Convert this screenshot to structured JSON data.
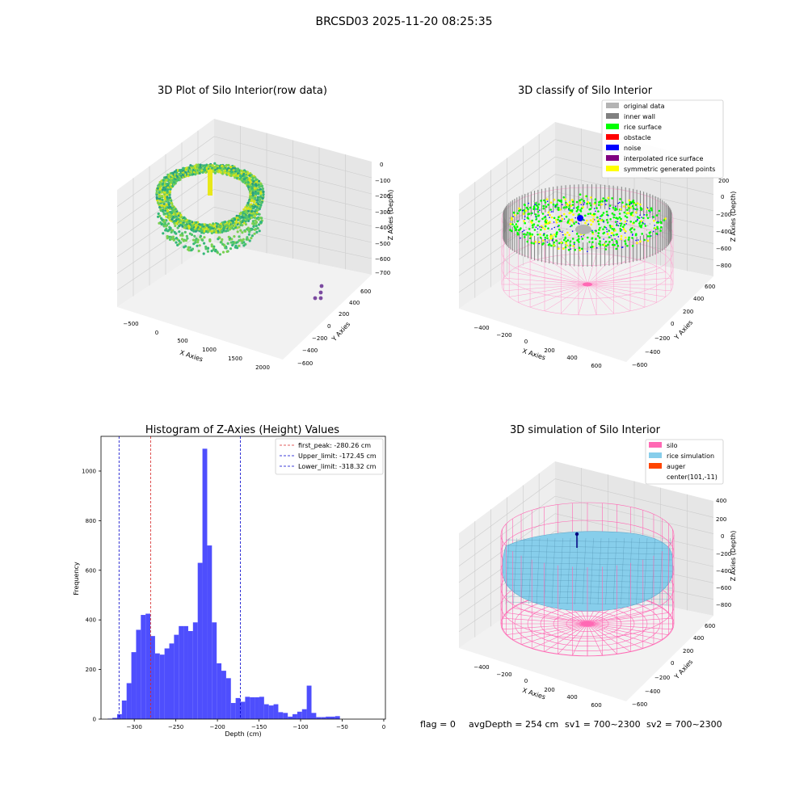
{
  "figure": {
    "suptitle": "BRCSD03 2025-11-20 08:25:35",
    "footer": {
      "flag": "flag = 0",
      "avg_depth": "avgDepth = 254 cm",
      "sv1": "sv1 = 700~2300",
      "sv2": "sv2 = 700~2300"
    }
  },
  "colors": {
    "hist_bar": "#4e4efd",
    "first_peak_line": "#d62728",
    "limit_line": "#0000cc",
    "original_data": "#b3b3b3",
    "inner_wall": "#808080",
    "rice_surface": "#00ff00",
    "obstacle": "#ff0000",
    "noise": "#0000ff",
    "interpolated_rice_surface": "#800080",
    "symmetric_generated_points": "#ffff00",
    "silo": "#ff69b4",
    "rice_simulation": "#87ceeb",
    "auger": "#ff4500"
  },
  "chart_data": [
    {
      "type": "scatter",
      "projection": "3d",
      "title": "3D Plot of Silo Interior(row data)",
      "xlabel": "X Axies",
      "ylabel": "Y Axies",
      "zlabel": "Z Axies (Depth)",
      "xticks": [
        "−500",
        "0",
        "500",
        "1000",
        "1500",
        "2000"
      ],
      "yticks": [
        "−600",
        "−400",
        "−200",
        "0",
        "200",
        "400",
        "600"
      ],
      "zticks": [
        "0",
        "−100",
        "−200",
        "−300",
        "−400",
        "−500",
        "−600",
        "−700"
      ],
      "xlim": [
        -600,
        2100
      ],
      "ylim": [
        -650,
        650
      ],
      "zlim": [
        -720,
        20
      ],
      "colormap": "viridis",
      "description_points": "ring-shaped rice point cloud near x≈0, plus a few outlier points near x≈2000"
    },
    {
      "type": "scatter",
      "projection": "3d",
      "title": "3D classify of Silo Interior",
      "xlabel": "X Axies",
      "ylabel": "Y Axies",
      "zlabel": "Z Axies (Depth)",
      "xticks": [
        "−400",
        "−200",
        "0",
        "200",
        "400",
        "600"
      ],
      "yticks": [
        "−600",
        "−400",
        "−200",
        "0",
        "200",
        "400",
        "600"
      ],
      "zticks": [
        "200",
        "0",
        "−200",
        "−400",
        "−600",
        "−800"
      ],
      "legend_position": "top-right",
      "legend": [
        {
          "label": "original data",
          "color_key": "original_data"
        },
        {
          "label": "inner wall",
          "color_key": "inner_wall"
        },
        {
          "label": "rice surface",
          "color_key": "rice_surface"
        },
        {
          "label": "obstacle",
          "color_key": "obstacle"
        },
        {
          "label": "noise",
          "color_key": "noise"
        },
        {
          "label": "interpolated rice surface",
          "color_key": "interpolated_rice_surface"
        },
        {
          "label": "symmetric generated points",
          "color_key": "symmetric_generated_points"
        }
      ]
    },
    {
      "type": "bar",
      "title": "Histogram of Z-Axies (Height) Values",
      "xlabel": "Depth (cm)",
      "ylabel": "Frequency",
      "xlim": [
        -340,
        2
      ],
      "ylim": [
        0,
        1140
      ],
      "xticks": [
        -300,
        -250,
        -200,
        -150,
        -100,
        -50,
        0
      ],
      "xtick_labels": [
        "−300",
        "−250",
        "−200",
        "−150",
        "−100",
        "−50",
        "0"
      ],
      "yticks": [
        0,
        200,
        400,
        600,
        800,
        1000
      ],
      "yticks_labels": [
        "0",
        "200",
        "400",
        "600",
        "800",
        "1000"
      ],
      "bin_start": -332,
      "bin_width": 5.7,
      "values": [
        2,
        5,
        20,
        75,
        145,
        270,
        360,
        420,
        425,
        335,
        265,
        260,
        285,
        305,
        340,
        375,
        375,
        355,
        390,
        630,
        1090,
        700,
        390,
        225,
        195,
        165,
        65,
        85,
        70,
        90,
        88,
        88,
        90,
        60,
        55,
        60,
        28,
        25,
        10,
        20,
        30,
        40,
        135,
        25,
        8,
        8,
        10,
        10,
        12
      ],
      "vlines": [
        {
          "x": -280.26,
          "label": "first_peak: -280.26 cm",
          "color_key": "first_peak_line"
        },
        {
          "x": -172.45,
          "label": "Upper_limit: -172.45 cm",
          "color_key": "limit_line"
        },
        {
          "x": -318.32,
          "label": "Lower_limit: -318.32 cm",
          "color_key": "limit_line"
        }
      ],
      "legend_position": "top-right"
    },
    {
      "type": "surface",
      "projection": "3d",
      "title": "3D simulation of Silo Interior",
      "xlabel": "X Axies",
      "ylabel": "Y Axies",
      "zlabel": "Z Axies (Depth)",
      "xticks": [
        "−400",
        "−200",
        "0",
        "200",
        "400",
        "600"
      ],
      "yticks": [
        "−600",
        "−400",
        "−200",
        "0",
        "200",
        "400",
        "600"
      ],
      "zticks": [
        "400",
        "200",
        "0",
        "−200",
        "−400",
        "−600",
        "−800"
      ],
      "legend_position": "top-right",
      "legend": [
        {
          "label": "silo",
          "color_key": "silo"
        },
        {
          "label": "rice simulation",
          "color_key": "rice_simulation"
        },
        {
          "label": "auger",
          "color_key": "auger"
        },
        {
          "label": "center(101,-11)",
          "color_key": ""
        }
      ]
    }
  ]
}
